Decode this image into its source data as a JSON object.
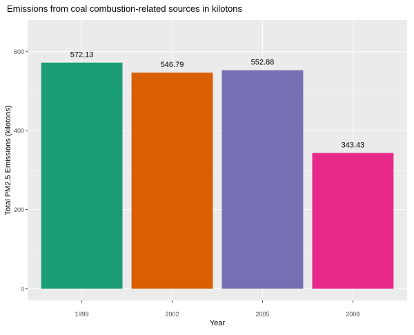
{
  "chart_data": {
    "type": "bar",
    "title": "Emissions from coal combustion-related sources in kilotons",
    "xlabel": "Year",
    "ylabel": "Total PM2.5 Emissions (kilotons)",
    "categories": [
      "1999",
      "2002",
      "2005",
      "2008"
    ],
    "values": [
      572.13,
      546.79,
      552.88,
      343.43
    ],
    "value_labels": [
      "572.13",
      "546.79",
      "552.88",
      "343.43"
    ],
    "colors": [
      "#1b9e77",
      "#d95f02",
      "#7570b3",
      "#e7298a"
    ],
    "ylim": [
      -30,
      680
    ],
    "yticks": [
      0,
      200,
      400,
      600
    ],
    "ytick_labels": [
      "0",
      "200",
      "400",
      "600"
    ],
    "panel_background": "#ebebeb",
    "grid": true,
    "legend": "none"
  }
}
